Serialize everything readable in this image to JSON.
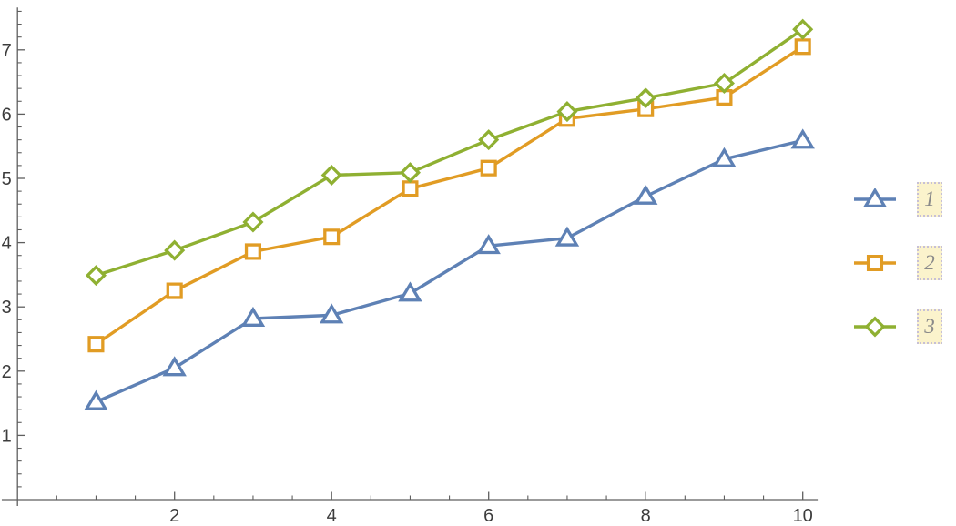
{
  "chart_data": {
    "type": "line",
    "title": "",
    "xlabel": "",
    "ylabel": "",
    "x": [
      1,
      2,
      3,
      4,
      5,
      6,
      7,
      8,
      9,
      10
    ],
    "series": [
      {
        "name": "1",
        "marker": "triangle",
        "color": "#5E81B5",
        "values": [
          1.52,
          2.05,
          2.82,
          2.87,
          3.21,
          3.95,
          4.07,
          4.72,
          5.3,
          5.59
        ]
      },
      {
        "name": "2",
        "marker": "square",
        "color": "#E19C24",
        "values": [
          2.42,
          3.25,
          3.86,
          4.09,
          4.84,
          5.16,
          5.93,
          6.08,
          6.26,
          7.05
        ]
      },
      {
        "name": "3",
        "marker": "diamond",
        "color": "#8FB032",
        "values": [
          3.49,
          3.88,
          4.32,
          5.05,
          5.09,
          5.6,
          6.04,
          6.25,
          6.48,
          7.32
        ]
      }
    ],
    "xlim": [
      -0.2,
      10.19
    ],
    "ylim": [
      -0.1,
      7.66
    ],
    "x_ticks": {
      "major": [
        2,
        4,
        6,
        8,
        10
      ],
      "major_labels": [
        "2",
        "4",
        "6",
        "8",
        "10"
      ],
      "minor_step": 0.5
    },
    "y_ticks": {
      "major": [
        1,
        2,
        3,
        4,
        5,
        6,
        7
      ],
      "major_labels": [
        "1",
        "2",
        "3",
        "4",
        "5",
        "6",
        "7"
      ],
      "minor_step": 0.2
    },
    "grid": false,
    "legend": {
      "position": "right",
      "entries": [
        "1",
        "2",
        "3"
      ]
    },
    "colors": {
      "axis": "#5f5f5f",
      "tick_label": "#3c3c3c",
      "marker_fill": "#ffffff",
      "legend_label": "#8a8a8a",
      "legend_box_bg": "#FBF3CC",
      "legend_box_border": "#c7c0d6"
    }
  }
}
